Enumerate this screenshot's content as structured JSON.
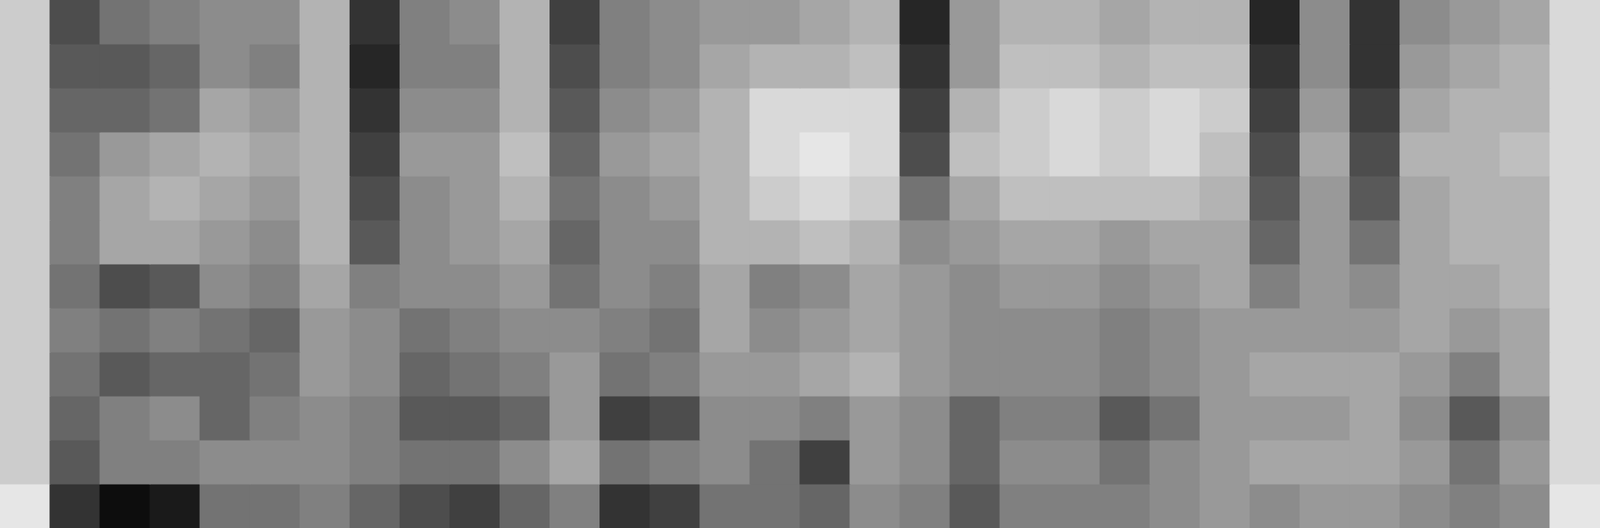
{
  "chart_data": {
    "type": "heatmap",
    "color": "#000000",
    "grid": false,
    "tick_labels": false,
    "ylim": [
      0,
      12
    ],
    "color_range": [
      0,
      1
    ],
    "cells": [
      [
        0.2,
        0.2,
        0.2,
        0.2,
        0.2,
        0.2,
        0.2,
        0.2,
        0.2,
        0.2,
        0.2,
        0.1
      ],
      [
        0.7,
        0.65,
        0.6,
        0.55,
        0.5,
        0.5,
        0.55,
        0.5,
        0.55,
        0.6,
        0.65,
        0.8
      ],
      [
        0.55,
        0.65,
        0.6,
        0.4,
        0.35,
        0.35,
        0.7,
        0.55,
        0.65,
        0.5,
        0.5,
        0.95
      ],
      [
        0.5,
        0.6,
        0.55,
        0.35,
        0.3,
        0.35,
        0.65,
        0.5,
        0.6,
        0.45,
        0.5,
        0.9
      ],
      [
        0.45,
        0.45,
        0.35,
        0.3,
        0.35,
        0.4,
        0.45,
        0.55,
        0.6,
        0.6,
        0.45,
        0.55
      ],
      [
        0.45,
        0.5,
        0.4,
        0.35,
        0.4,
        0.45,
        0.5,
        0.6,
        0.55,
        0.5,
        0.45,
        0.55
      ],
      [
        0.3,
        0.3,
        0.3,
        0.3,
        0.3,
        0.3,
        0.35,
        0.4,
        0.4,
        0.45,
        0.45,
        0.5
      ],
      [
        0.8,
        0.85,
        0.8,
        0.75,
        0.7,
        0.65,
        0.5,
        0.45,
        0.45,
        0.5,
        0.5,
        0.6
      ],
      [
        0.5,
        0.5,
        0.45,
        0.4,
        0.45,
        0.45,
        0.45,
        0.55,
        0.6,
        0.65,
        0.55,
        0.7
      ],
      [
        0.45,
        0.5,
        0.45,
        0.4,
        0.4,
        0.4,
        0.45,
        0.5,
        0.55,
        0.65,
        0.55,
        0.75
      ],
      [
        0.3,
        0.3,
        0.3,
        0.25,
        0.3,
        0.35,
        0.4,
        0.45,
        0.5,
        0.6,
        0.45,
        0.6
      ],
      [
        0.75,
        0.7,
        0.65,
        0.6,
        0.55,
        0.6,
        0.55,
        0.45,
        0.4,
        0.4,
        0.35,
        0.5
      ],
      [
        0.5,
        0.5,
        0.45,
        0.4,
        0.45,
        0.45,
        0.45,
        0.5,
        0.55,
        0.75,
        0.55,
        0.8
      ],
      [
        0.45,
        0.45,
        0.4,
        0.35,
        0.4,
        0.45,
        0.5,
        0.55,
        0.5,
        0.7,
        0.5,
        0.75
      ],
      [
        0.4,
        0.35,
        0.3,
        0.3,
        0.3,
        0.3,
        0.35,
        0.35,
        0.4,
        0.45,
        0.45,
        0.55
      ],
      [
        0.4,
        0.3,
        0.15,
        0.15,
        0.2,
        0.3,
        0.5,
        0.45,
        0.4,
        0.45,
        0.55,
        0.55
      ],
      [
        0.35,
        0.3,
        0.15,
        0.1,
        0.15,
        0.25,
        0.45,
        0.4,
        0.35,
        0.5,
        0.75,
        0.6
      ],
      [
        0.3,
        0.25,
        0.15,
        0.15,
        0.2,
        0.3,
        0.35,
        0.35,
        0.3,
        0.4,
        0.4,
        0.45
      ],
      [
        0.85,
        0.8,
        0.75,
        0.7,
        0.55,
        0.45,
        0.4,
        0.4,
        0.4,
        0.45,
        0.45,
        0.5
      ],
      [
        0.4,
        0.4,
        0.3,
        0.25,
        0.35,
        0.4,
        0.45,
        0.45,
        0.45,
        0.6,
        0.6,
        0.65
      ],
      [
        0.3,
        0.25,
        0.2,
        0.2,
        0.25,
        0.35,
        0.4,
        0.45,
        0.45,
        0.5,
        0.45,
        0.5
      ],
      [
        0.3,
        0.25,
        0.15,
        0.15,
        0.25,
        0.35,
        0.4,
        0.45,
        0.45,
        0.5,
        0.45,
        0.5
      ],
      [
        0.35,
        0.3,
        0.2,
        0.2,
        0.25,
        0.4,
        0.45,
        0.5,
        0.5,
        0.65,
        0.55,
        0.5
      ],
      [
        0.3,
        0.25,
        0.15,
        0.15,
        0.25,
        0.35,
        0.4,
        0.45,
        0.45,
        0.55,
        0.45,
        0.45
      ],
      [
        0.3,
        0.25,
        0.2,
        0.25,
        0.3,
        0.35,
        0.35,
        0.4,
        0.4,
        0.4,
        0.4,
        0.4
      ],
      [
        0.85,
        0.8,
        0.75,
        0.7,
        0.65,
        0.6,
        0.5,
        0.4,
        0.35,
        0.4,
        0.35,
        0.45
      ],
      [
        0.45,
        0.45,
        0.4,
        0.35,
        0.4,
        0.4,
        0.4,
        0.4,
        0.35,
        0.4,
        0.35,
        0.4
      ],
      [
        0.8,
        0.8,
        0.75,
        0.7,
        0.65,
        0.55,
        0.45,
        0.4,
        0.35,
        0.35,
        0.35,
        0.4
      ],
      [
        0.45,
        0.4,
        0.35,
        0.3,
        0.35,
        0.35,
        0.35,
        0.35,
        0.4,
        0.45,
        0.4,
        0.45
      ],
      [
        0.4,
        0.35,
        0.3,
        0.3,
        0.3,
        0.3,
        0.35,
        0.4,
        0.5,
        0.65,
        0.55,
        0.5
      ],
      [
        0.35,
        0.3,
        0.3,
        0.25,
        0.3,
        0.3,
        0.3,
        0.35,
        0.35,
        0.45,
        0.4,
        0.45
      ],
      [
        0.15,
        0.15,
        0.15,
        0.15,
        0.15,
        0.15,
        0.15,
        0.15,
        0.15,
        0.15,
        0.15,
        0.1
      ]
    ]
  }
}
